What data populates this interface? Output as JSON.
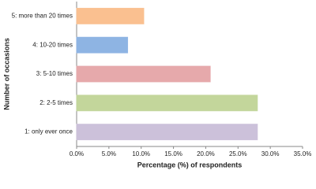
{
  "chart_data": {
    "type": "barh",
    "x_label": "Percentage (%) of respondents",
    "y_label": "Number of occasions",
    "categories": [
      "5: more than 20 times",
      "4: 10-20 times",
      "3: 5-10 times",
      "2: 2-5 times",
      "1: only ever once"
    ],
    "values": [
      10.4,
      7.9,
      20.7,
      28,
      28
    ],
    "colors": [
      "#fac090",
      "#8eb4e3",
      "#e6a9ab",
      "#c3d69b",
      "#ccc1da"
    ],
    "xlim": [
      0,
      35
    ],
    "xticks": [
      {
        "value": 0,
        "label": "0.0%"
      },
      {
        "value": 5,
        "label": "5.0%"
      },
      {
        "value": 10,
        "label": "10.0%"
      },
      {
        "value": 15,
        "label": "15.0%"
      },
      {
        "value": 20,
        "label": "20.0%"
      },
      {
        "value": 25,
        "label": "25.0%"
      },
      {
        "value": 30,
        "label": "30.0%"
      },
      {
        "value": 35,
        "label": "35.0%"
      }
    ],
    "grid": false
  }
}
